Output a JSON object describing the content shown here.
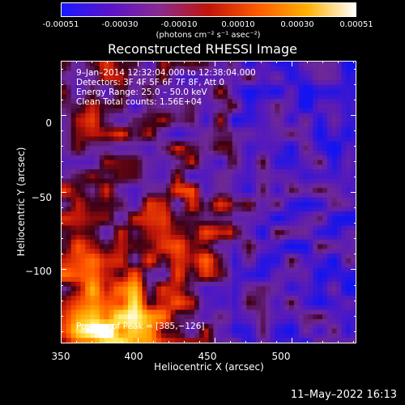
{
  "colorbar": {
    "ticks": [
      "-0.00051",
      "-0.00030",
      "-0.00010",
      "0.00010",
      "0.00030",
      "0.00051"
    ],
    "units": "(photons cm⁻² s⁻¹ asec⁻²)",
    "colors": [
      "#1a1aff",
      "#5a14c8",
      "#8a2a90",
      "#c0140a",
      "#ff5a00",
      "#ffb000",
      "#ffffff"
    ]
  },
  "chart_data": {
    "type": "heatmap",
    "title": "Reconstructed RHESSI Image",
    "xlabel": "Heliocentric X (arcsec)",
    "ylabel": "Heliocentric Y (arcsec)",
    "x_ticks": [
      "350",
      "400",
      "450",
      "500"
    ],
    "y_ticks": [
      "0",
      "−50",
      "−100"
    ],
    "xlim": [
      350,
      542
    ],
    "ylim": [
      -148,
      35
    ],
    "color_range": [
      -0.00051,
      0.00051
    ],
    "peak": {
      "x": 385,
      "y": -126
    },
    "annotations": {
      "time": "9–Jan–2014 12:32:04.000 to 12:38:04.000",
      "detectors": "Detectors: 3F 4F 5F 6F 7F 8F, Att 0",
      "energy": "Energy Range: 25.0 – 50.0 keV",
      "clean": "Clean     Total counts: 1.56E+04",
      "peak_label": "Position of Peak = [385,−126]"
    }
  },
  "footer_date": "11–May–2022 16:13"
}
